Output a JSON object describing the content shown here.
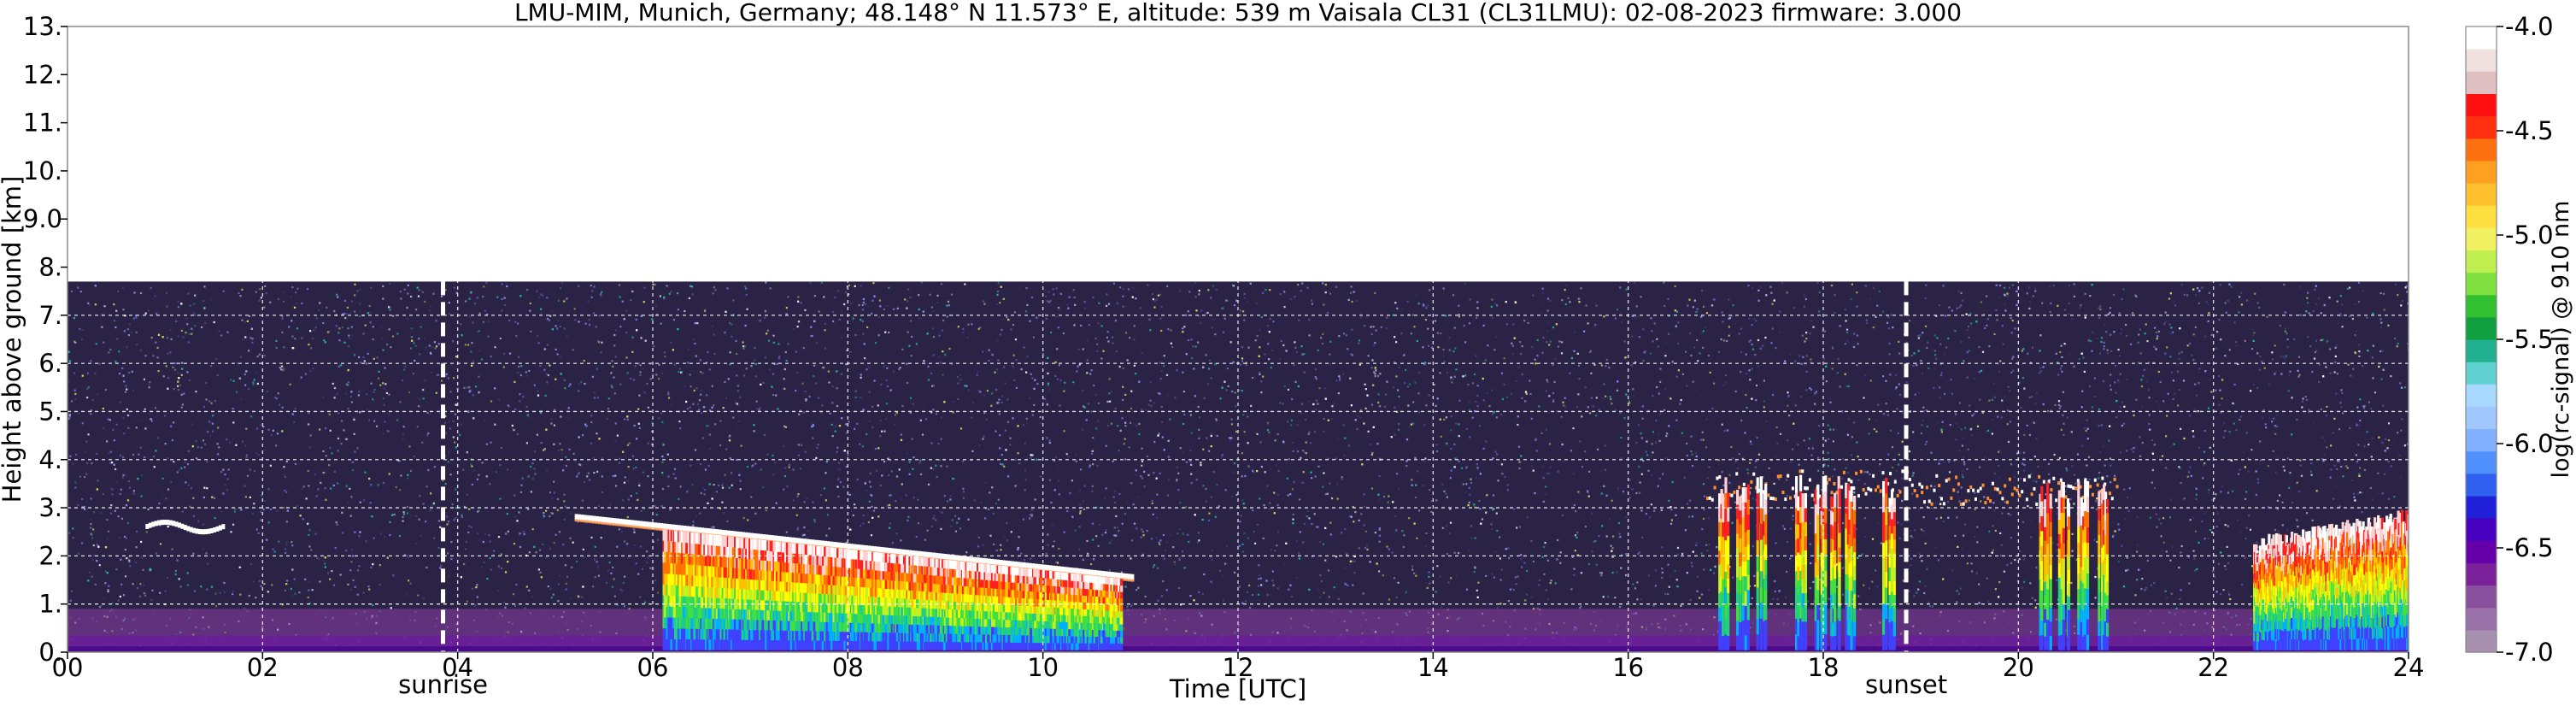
{
  "chart_data": {
    "type": "heatmap",
    "title": "LMU-MIM, Munich, Germany; 48.148° N 11.573° E, altitude: 539 m    Vaisala CL31 (CL31LMU): 02-08-2023    firmware: 3.000",
    "xlabel": "Time [UTC]",
    "ylabel": "Height above ground [km]",
    "xlim": [
      0,
      24
    ],
    "ylim": [
      0,
      13
    ],
    "x_ticks": [
      "00",
      "02",
      "04",
      "06",
      "08",
      "10",
      "12",
      "14",
      "16",
      "18",
      "20",
      "22",
      "24"
    ],
    "y_ticks": [
      "0.",
      "1.",
      "2.",
      "3.",
      "4.",
      "5.",
      "6.",
      "7.",
      "8.",
      "9.0",
      "10.",
      "11.",
      "12.",
      "13."
    ],
    "grid": true,
    "data_max_height_km": 7.7,
    "markers": [
      {
        "label": "sunrise",
        "time_h": 3.85
      },
      {
        "label": "sunset",
        "time_h": 18.85
      }
    ],
    "colorbar": {
      "label": "log(rc-signal) @ 910 nm",
      "range": [
        -7.0,
        -4.0
      ],
      "ticks": [
        "-4.0",
        "-4.5",
        "-5.0",
        "-5.5",
        "-6.0",
        "-6.5",
        "-7.0"
      ]
    },
    "features": [
      {
        "type": "cloud_layer",
        "start_h": 0.8,
        "end_h": 1.6,
        "height_km": 2.6
      },
      {
        "type": "cloud_layer",
        "start_h": 5.2,
        "end_h": 10.9,
        "top_km_start": 2.8,
        "top_km_end": 1.55,
        "intense_from_h": 6.1
      },
      {
        "type": "cloud_fragments",
        "start_h": 16.8,
        "end_h": 19.0,
        "height_km": 3.5
      },
      {
        "type": "cloud_fragments",
        "start_h": 19.0,
        "end_h": 21.0,
        "height_km": 3.4
      },
      {
        "type": "cloud_layer",
        "start_h": 22.4,
        "end_h": 24.0,
        "height_km": 2.0
      }
    ]
  }
}
